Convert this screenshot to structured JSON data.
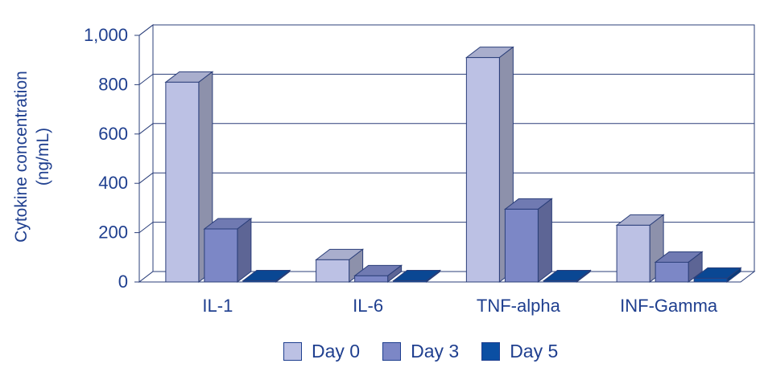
{
  "chart_data": {
    "type": "bar",
    "title": "",
    "xlabel": "",
    "ylabel": "Cytokine concentration\n(ng/mL)",
    "ylim": [
      0,
      1000
    ],
    "yticks": [
      0,
      200,
      400,
      600,
      800,
      1000
    ],
    "ytick_labels": [
      "0",
      "200",
      "400",
      "600",
      "800",
      "1,000"
    ],
    "categories": [
      "IL-1",
      "IL-6",
      "TNF-alpha",
      "INF-Gamma"
    ],
    "series": [
      {
        "name": "Day 0",
        "values": [
          810,
          90,
          910,
          230
        ],
        "color": "#bcc1e4"
      },
      {
        "name": "Day 3",
        "values": [
          215,
          25,
          295,
          80
        ],
        "color": "#7c87c6"
      },
      {
        "name": "Day 5",
        "values": [
          5,
          5,
          5,
          15
        ],
        "color": "#0b4fa3"
      }
    ],
    "grid": true,
    "legend_position": "bottom-center",
    "three_d": true
  }
}
